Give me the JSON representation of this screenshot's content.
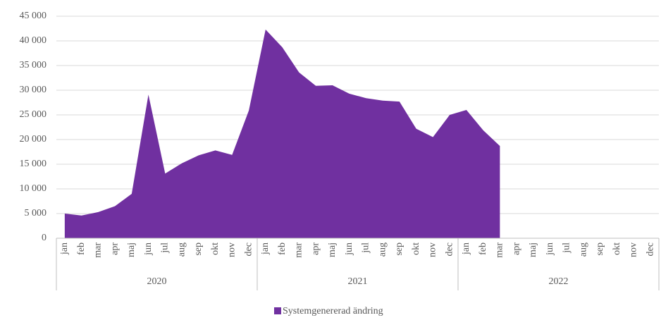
{
  "chart_data": {
    "type": "area",
    "groups": [
      {
        "label": "2020",
        "months": [
          "jan",
          "feb",
          "mar",
          "apr",
          "maj",
          "jun",
          "jul",
          "aug",
          "sep",
          "okt",
          "nov",
          "dec"
        ]
      },
      {
        "label": "2021",
        "months": [
          "jan",
          "feb",
          "mar",
          "apr",
          "maj",
          "jun",
          "jul",
          "aug",
          "sep",
          "okt",
          "nov",
          "dec"
        ]
      },
      {
        "label": "2022",
        "months": [
          "jan",
          "feb",
          "mar",
          "apr",
          "maj",
          "jun",
          "jul",
          "aug",
          "sep",
          "okt",
          "nov",
          "dec"
        ]
      }
    ],
    "series": [
      {
        "name": "Systemgenererad ändring",
        "color": "#7030a0",
        "values": [
          5000,
          4600,
          5300,
          6500,
          9000,
          29100,
          13100,
          15200,
          16800,
          17800,
          16900,
          25900,
          42300,
          38700,
          33600,
          30900,
          31000,
          29300,
          28400,
          27900,
          27700,
          22200,
          20500,
          25000,
          26000,
          21900,
          18700,
          null,
          null,
          null,
          null,
          null,
          null,
          null,
          null,
          null
        ]
      }
    ],
    "ylim": [
      0,
      45000
    ],
    "yticks": [
      0,
      {
        "value": 5000,
        "label": "5 000"
      },
      {
        "value": 10000,
        "label": "10 000"
      },
      {
        "value": 15000,
        "label": "15 000"
      },
      {
        "value": 20000,
        "label": "20 000"
      },
      {
        "value": 25000,
        "label": "25 000"
      },
      {
        "value": 30000,
        "label": "30 000"
      },
      {
        "value": 35000,
        "label": "35 000"
      },
      {
        "value": 40000,
        "label": "40 000"
      },
      {
        "value": 45000,
        "label": "45 000"
      }
    ],
    "grid": true,
    "legend": "bottom"
  }
}
